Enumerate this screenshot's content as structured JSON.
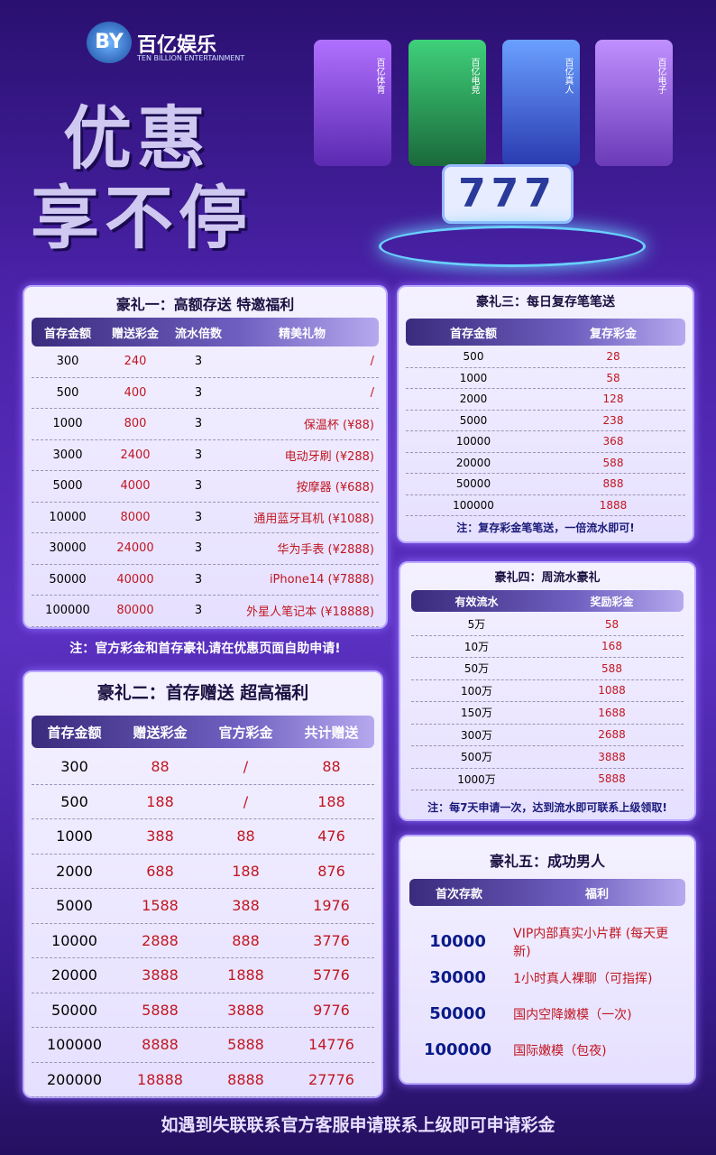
{
  "header": {
    "logo": "BY",
    "brand": "百亿娱乐",
    "brand_en": "TEN BILLION ENTERTAINMENT",
    "slogan": [
      "优惠",
      "享不停"
    ],
    "tabs": [
      "百亿体育",
      "百亿电竞",
      "百亿真人",
      "百亿电子"
    ],
    "slot": "777"
  },
  "gift1": {
    "title": "豪礼一：高额存送 特邀福利",
    "headers": [
      "首存金额",
      "赠送彩金",
      "流水倍数",
      "精美礼物"
    ],
    "rows": [
      [
        300,
        240,
        3,
        "/"
      ],
      [
        500,
        400,
        3,
        "/"
      ],
      [
        1000,
        800,
        3,
        "保温杯 (¥88)"
      ],
      [
        3000,
        2400,
        3,
        "电动牙刷 (¥288)"
      ],
      [
        5000,
        4000,
        3,
        "按摩器 (¥688)"
      ],
      [
        10000,
        8000,
        3,
        "通用蓝牙耳机 (¥1088)"
      ],
      [
        30000,
        24000,
        3,
        "华为手表 (¥2888)"
      ],
      [
        50000,
        40000,
        3,
        "iPhone14 (¥7888)"
      ],
      [
        100000,
        80000,
        3,
        "外星人笔记本 (¥18888)"
      ]
    ]
  },
  "note1": "注：官方彩金和首存豪礼请在优惠页面自助申请!",
  "gift2": {
    "title": "豪礼二：首存赠送 超高福利",
    "headers": [
      "首存金额",
      "赠送彩金",
      "官方彩金",
      "共计赠送"
    ],
    "rows": [
      [
        300,
        88,
        "/",
        88
      ],
      [
        500,
        188,
        "/",
        188
      ],
      [
        1000,
        388,
        88,
        476
      ],
      [
        2000,
        688,
        188,
        876
      ],
      [
        5000,
        1588,
        388,
        1976
      ],
      [
        10000,
        2888,
        888,
        3776
      ],
      [
        20000,
        3888,
        1888,
        5776
      ],
      [
        50000,
        5888,
        3888,
        9776
      ],
      [
        100000,
        8888,
        5888,
        14776
      ],
      [
        200000,
        18888,
        8888,
        27776
      ]
    ]
  },
  "gift3": {
    "title": "豪礼三：每日复存笔笔送",
    "headers": [
      "首存金额",
      "复存彩金"
    ],
    "rows": [
      [
        500,
        28
      ],
      [
        1000,
        58
      ],
      [
        2000,
        128
      ],
      [
        5000,
        238
      ],
      [
        10000,
        368
      ],
      [
        20000,
        588
      ],
      [
        50000,
        888
      ],
      [
        100000,
        1888
      ]
    ],
    "note": "注：复存彩金笔笔送，一倍流水即可!"
  },
  "gift4": {
    "title": "豪礼四：周流水豪礼",
    "headers": [
      "有效流水",
      "奖励彩金"
    ],
    "rows": [
      [
        "5万",
        58
      ],
      [
        "10万",
        168
      ],
      [
        "50万",
        588
      ],
      [
        "100万",
        1088
      ],
      [
        "150万",
        1688
      ],
      [
        "300万",
        2688
      ],
      [
        "500万",
        3888
      ],
      [
        "1000万",
        5888
      ]
    ],
    "note": "注：每7天申请一次，达到流水即可联系上级领取!"
  },
  "gift5": {
    "title": "豪礼五：成功男人",
    "headers": [
      "首次存款",
      "福利"
    ],
    "rows": [
      [
        10000,
        "VIP内部真实小片群 (每天更新)"
      ],
      [
        30000,
        "1小时真人裸聊（可指挥)"
      ],
      [
        50000,
        "国内空降嫩模（一次)"
      ],
      [
        100000,
        "国际嫩模（包夜)"
      ]
    ]
  },
  "footer": "如遇到失联联系官方客服申请联系上级即可申请彩金"
}
